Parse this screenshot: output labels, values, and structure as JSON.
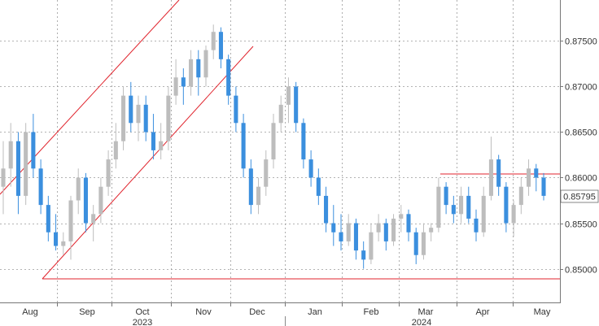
{
  "chart_data": {
    "type": "candlestick",
    "ylim": [
      0.8463,
      0.8795
    ],
    "y_ticks": [
      "0.85000",
      "0.85500",
      "0.86000",
      "0.86500",
      "0.87000",
      "0.87500"
    ],
    "x_ticks": [
      "Aug",
      "Sep",
      "Oct",
      "Nov",
      "Dec",
      "Jan",
      "Feb",
      "Mar",
      "Apr",
      "May"
    ],
    "year_labels": [
      "2023",
      "2024"
    ],
    "last_price": "0.85795",
    "grid": true,
    "colors": {
      "up": "#bdbdbd",
      "down": "#3b8fde",
      "annotation": "#e0232c",
      "grid": "#9a9a9a"
    },
    "ohlc": [
      [
        0.859,
        0.864,
        0.856,
        0.861
      ],
      [
        0.861,
        0.866,
        0.859,
        0.864
      ],
      [
        0.864,
        0.865,
        0.856,
        0.858
      ],
      [
        0.858,
        0.866,
        0.857,
        0.865
      ],
      [
        0.865,
        0.867,
        0.86,
        0.861
      ],
      [
        0.861,
        0.862,
        0.856,
        0.857
      ],
      [
        0.857,
        0.858,
        0.853,
        0.854
      ],
      [
        0.854,
        0.856,
        0.852,
        0.8525
      ],
      [
        0.8525,
        0.854,
        0.8515,
        0.853
      ],
      [
        0.853,
        0.858,
        0.851,
        0.8575
      ],
      [
        0.8575,
        0.861,
        0.856,
        0.86
      ],
      [
        0.86,
        0.8605,
        0.854,
        0.855
      ],
      [
        0.855,
        0.857,
        0.853,
        0.856
      ],
      [
        0.856,
        0.86,
        0.855,
        0.859
      ],
      [
        0.859,
        0.863,
        0.858,
        0.862
      ],
      [
        0.862,
        0.866,
        0.861,
        0.864
      ],
      [
        0.864,
        0.87,
        0.863,
        0.869
      ],
      [
        0.869,
        0.8705,
        0.865,
        0.866
      ],
      [
        0.866,
        0.869,
        0.864,
        0.868
      ],
      [
        0.868,
        0.869,
        0.864,
        0.865
      ],
      [
        0.865,
        0.867,
        0.862,
        0.863
      ],
      [
        0.863,
        0.866,
        0.862,
        0.864
      ],
      [
        0.864,
        0.87,
        0.863,
        0.869
      ],
      [
        0.869,
        0.873,
        0.868,
        0.871
      ],
      [
        0.871,
        0.872,
        0.868,
        0.87
      ],
      [
        0.87,
        0.874,
        0.869,
        0.873
      ],
      [
        0.873,
        0.874,
        0.869,
        0.871
      ],
      [
        0.871,
        0.8745,
        0.87,
        0.874
      ],
      [
        0.874,
        0.8768,
        0.873,
        0.876
      ],
      [
        0.876,
        0.8765,
        0.872,
        0.873
      ],
      [
        0.873,
        0.8735,
        0.868,
        0.869
      ],
      [
        0.869,
        0.87,
        0.865,
        0.866
      ],
      [
        0.866,
        0.867,
        0.86,
        0.861
      ],
      [
        0.861,
        0.862,
        0.856,
        0.857
      ],
      [
        0.857,
        0.86,
        0.856,
        0.859
      ],
      [
        0.859,
        0.863,
        0.858,
        0.862
      ],
      [
        0.862,
        0.867,
        0.861,
        0.866
      ],
      [
        0.866,
        0.869,
        0.865,
        0.868
      ],
      [
        0.868,
        0.871,
        0.866,
        0.87
      ],
      [
        0.87,
        0.8705,
        0.865,
        0.866
      ],
      [
        0.866,
        0.8665,
        0.861,
        0.862
      ],
      [
        0.862,
        0.863,
        0.859,
        0.86
      ],
      [
        0.86,
        0.861,
        0.857,
        0.858
      ],
      [
        0.858,
        0.859,
        0.854,
        0.855
      ],
      [
        0.855,
        0.857,
        0.8525,
        0.854
      ],
      [
        0.854,
        0.856,
        0.852,
        0.853
      ],
      [
        0.853,
        0.856,
        0.8525,
        0.855
      ],
      [
        0.855,
        0.8555,
        0.851,
        0.852
      ],
      [
        0.852,
        0.853,
        0.85,
        0.851
      ],
      [
        0.851,
        0.855,
        0.8505,
        0.854
      ],
      [
        0.854,
        0.856,
        0.853,
        0.855
      ],
      [
        0.855,
        0.8555,
        0.852,
        0.853
      ],
      [
        0.853,
        0.856,
        0.8525,
        0.8555
      ],
      [
        0.8555,
        0.857,
        0.854,
        0.856
      ],
      [
        0.856,
        0.8565,
        0.853,
        0.854
      ],
      [
        0.854,
        0.8545,
        0.8505,
        0.8515
      ],
      [
        0.8515,
        0.855,
        0.851,
        0.854
      ],
      [
        0.854,
        0.855,
        0.853,
        0.8545
      ],
      [
        0.8545,
        0.86,
        0.854,
        0.859
      ],
      [
        0.859,
        0.8595,
        0.856,
        0.857
      ],
      [
        0.857,
        0.858,
        0.855,
        0.856
      ],
      [
        0.856,
        0.859,
        0.855,
        0.858
      ],
      [
        0.858,
        0.859,
        0.855,
        0.8555
      ],
      [
        0.8555,
        0.8565,
        0.853,
        0.854
      ],
      [
        0.854,
        0.859,
        0.8535,
        0.858
      ],
      [
        0.858,
        0.8645,
        0.8575,
        0.862
      ],
      [
        0.862,
        0.8625,
        0.858,
        0.859
      ],
      [
        0.859,
        0.8595,
        0.854,
        0.855
      ],
      [
        0.855,
        0.8575,
        0.8535,
        0.857
      ],
      [
        0.857,
        0.86,
        0.856,
        0.859
      ],
      [
        0.859,
        0.862,
        0.858,
        0.861
      ],
      [
        0.861,
        0.8615,
        0.8585,
        0.86
      ],
      [
        0.86,
        0.8605,
        0.8575,
        0.858
      ]
    ]
  }
}
